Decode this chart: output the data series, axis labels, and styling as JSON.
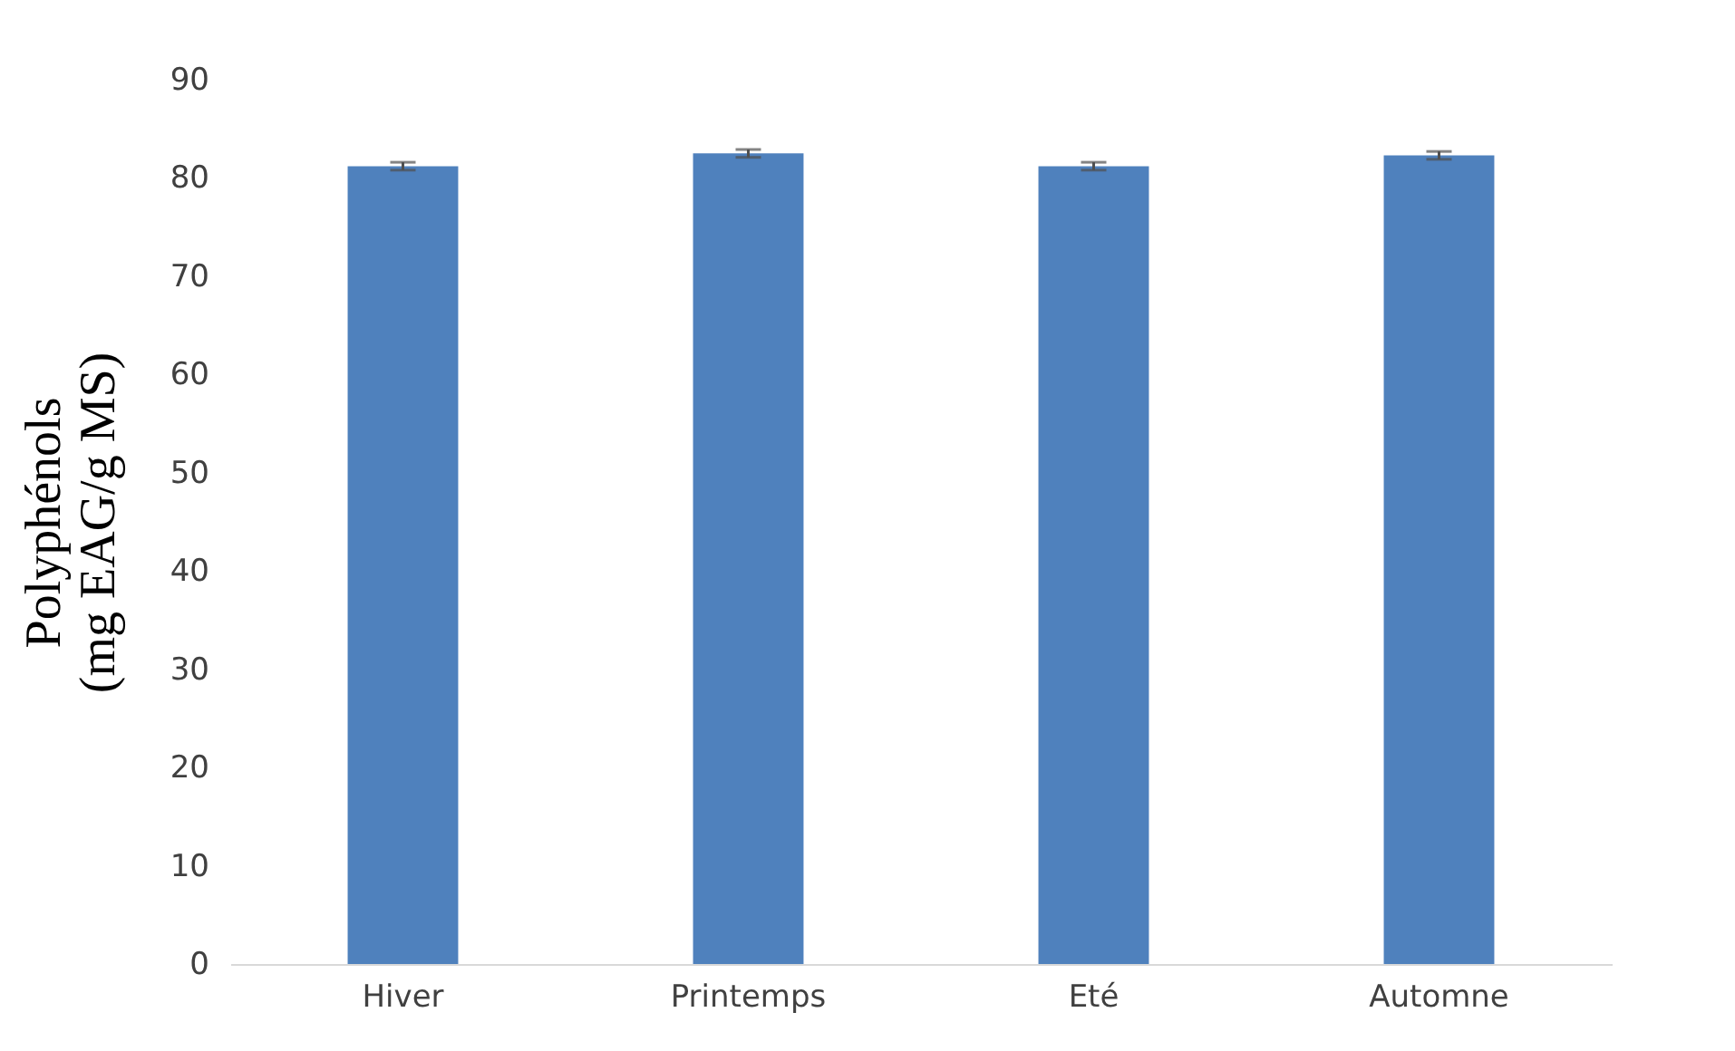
{
  "chart_data": {
    "type": "bar",
    "ylabel": "Polyphénols\n(mg EAG/g MS)",
    "categories": [
      "Hiver",
      "Printemps",
      "Eté",
      "Automne"
    ],
    "values": [
      81.2,
      82.5,
      81.2,
      82.3
    ],
    "errors": [
      0.4,
      0.4,
      0.4,
      0.4
    ],
    "color": "#4f81bd",
    "ylim": [
      0,
      90
    ],
    "yticks": [
      0,
      10,
      20,
      30,
      40,
      50,
      60,
      70,
      80,
      90
    ],
    "grid": false
  }
}
